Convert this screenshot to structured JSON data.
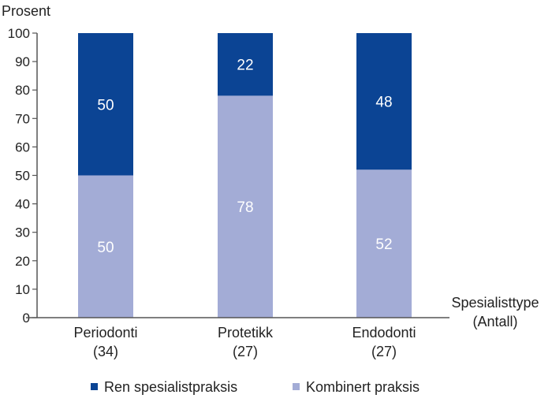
{
  "chart_data": {
    "type": "bar",
    "stacked": true,
    "ylabel": "Prosent",
    "xlabel": [
      "Spesialisttype",
      "(Antall)"
    ],
    "ylim": [
      0,
      100
    ],
    "yticks": [
      0,
      10,
      20,
      30,
      40,
      50,
      60,
      70,
      80,
      90,
      100
    ],
    "categories": [
      {
        "name": "Periodonti",
        "count": "(34)"
      },
      {
        "name": "Protetikk",
        "count": "(27)"
      },
      {
        "name": "Endodonti",
        "count": "(27)"
      }
    ],
    "series": [
      {
        "name": "Kombinert praksis",
        "color": "#a3acd6",
        "values": [
          50,
          78,
          52
        ]
      },
      {
        "name": "Ren spesialistpraksis",
        "color": "#0b4494",
        "values": [
          50,
          22,
          48
        ]
      }
    ],
    "legend": {
      "placement": "bottom",
      "order": [
        "Ren spesialistpraksis",
        "Kombinert praksis"
      ]
    },
    "grid": false
  }
}
